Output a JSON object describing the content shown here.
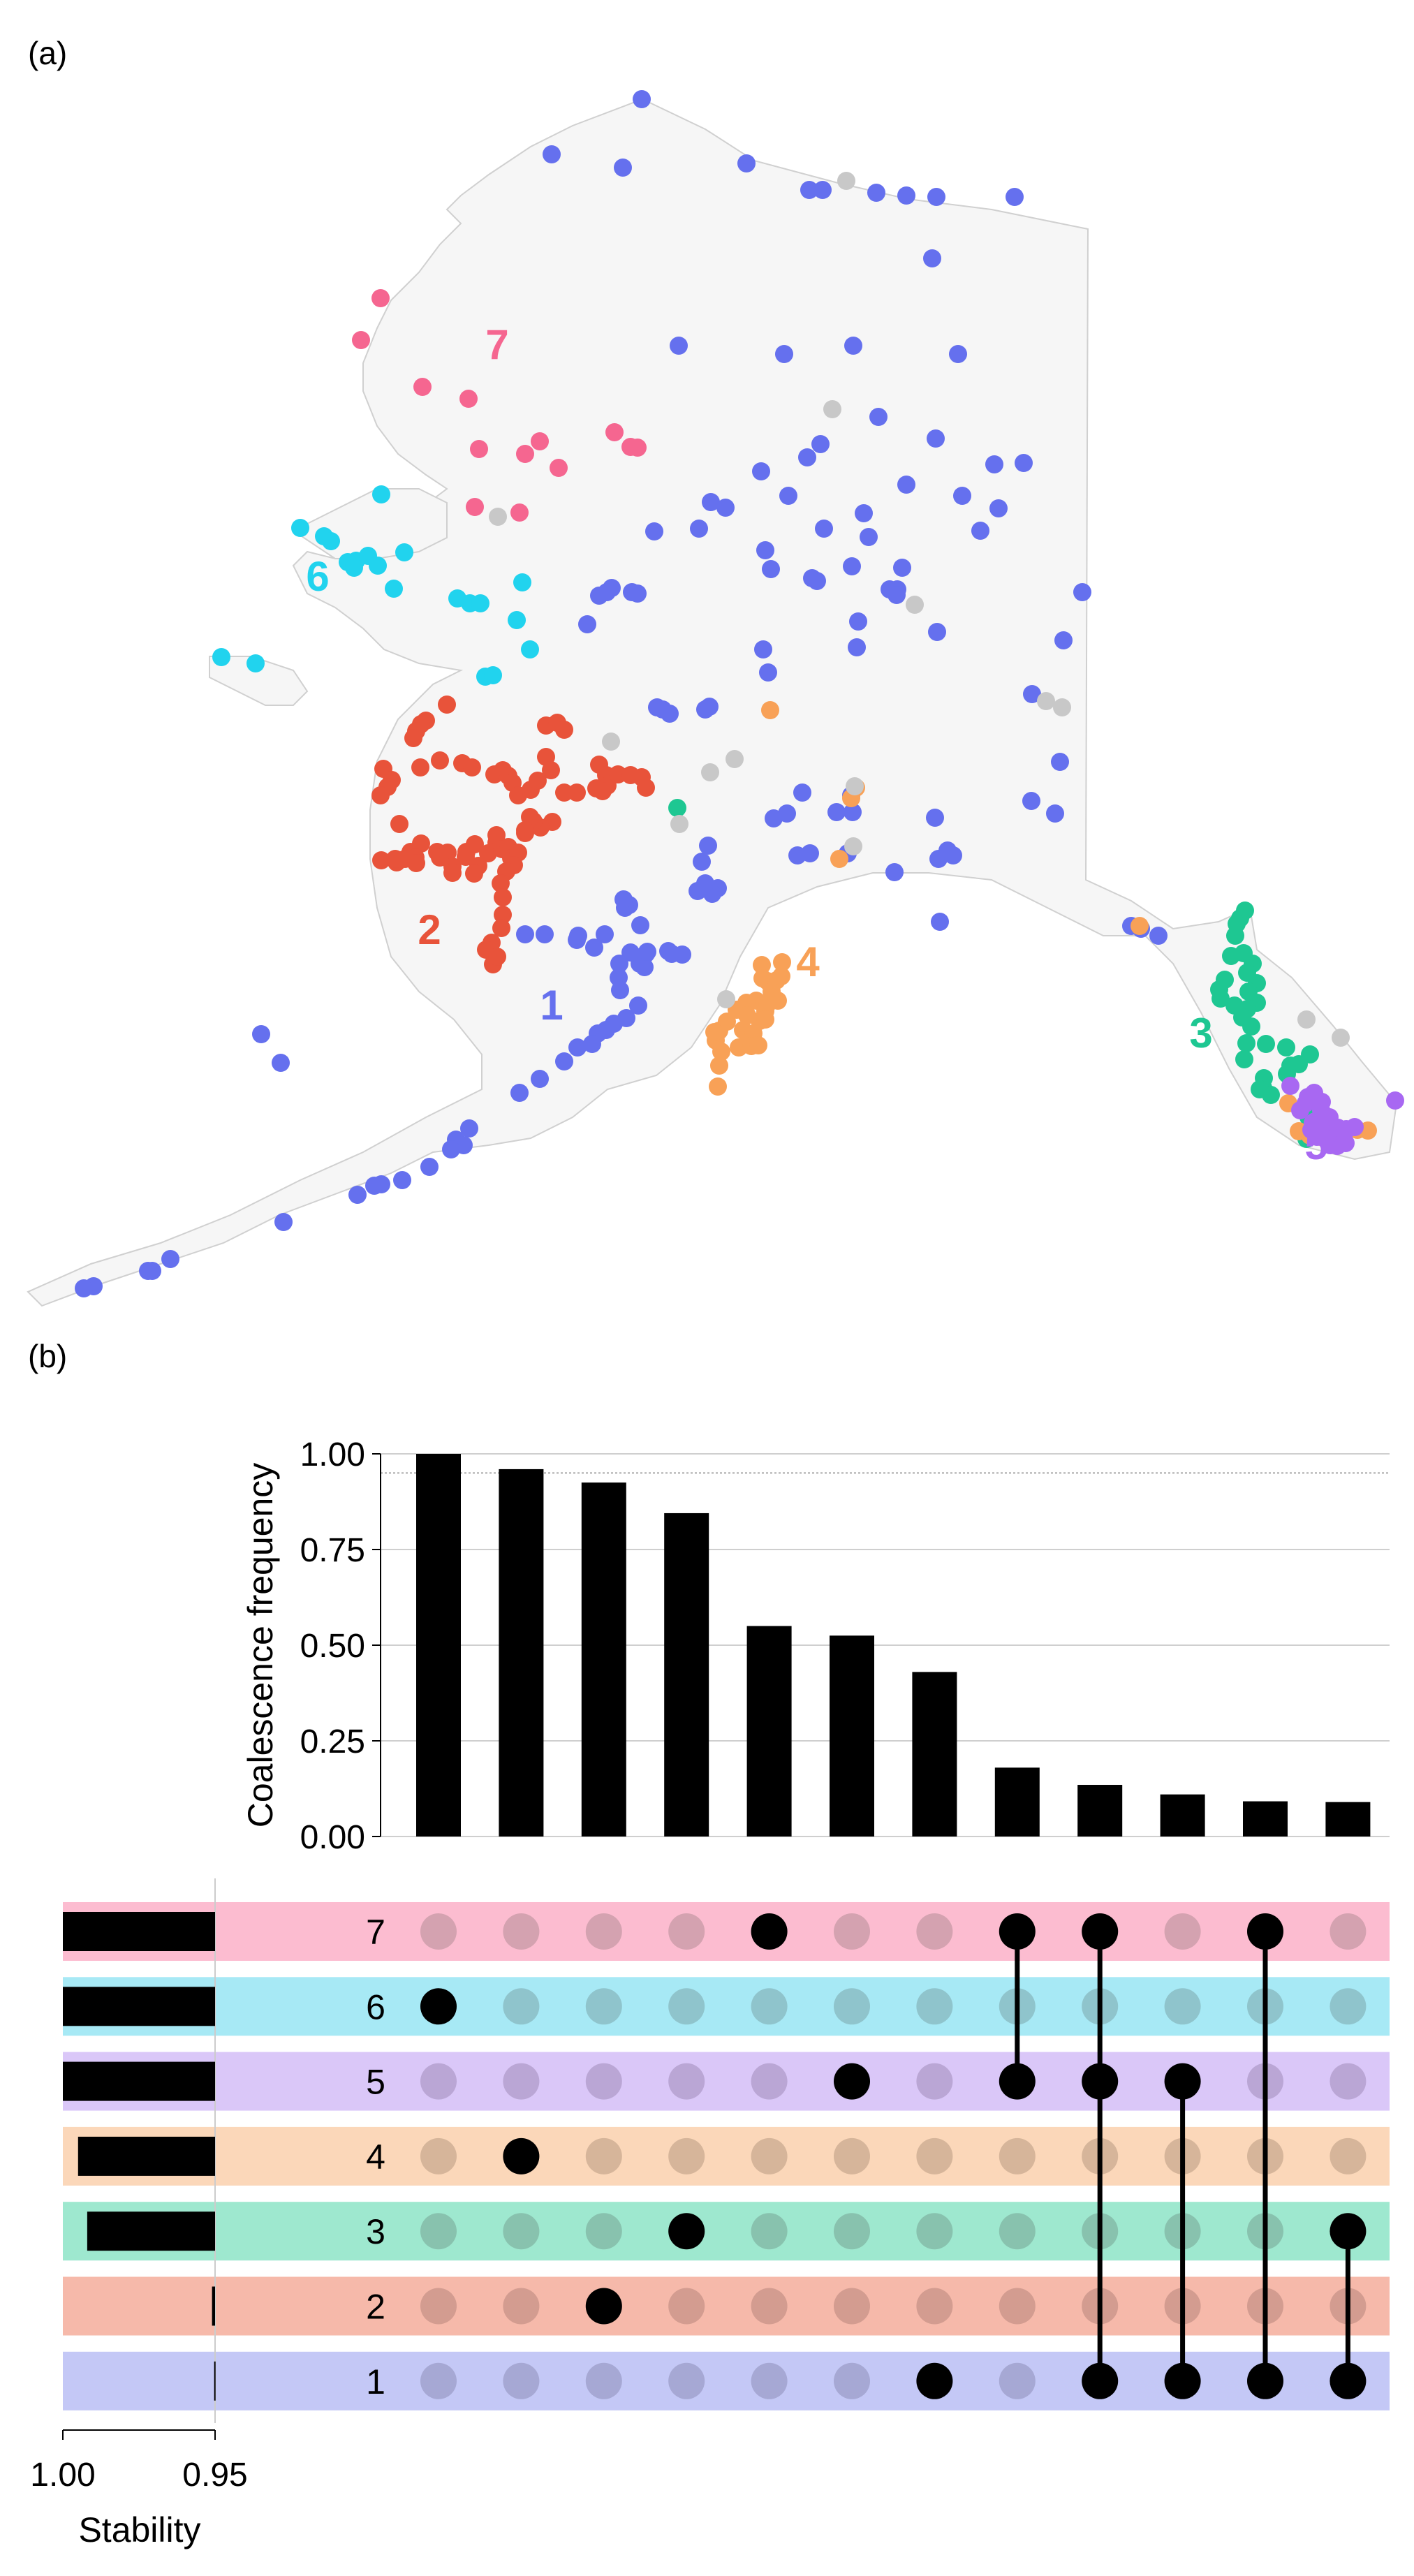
{
  "panel_labels": {
    "a": "(a)",
    "b": "(b)"
  },
  "map": {
    "region_labels": [
      {
        "id": "1",
        "text": "1",
        "color": "#6570ee"
      },
      {
        "id": "2",
        "text": "2",
        "color": "#e8533a"
      },
      {
        "id": "3",
        "text": "3",
        "color": "#1ec792"
      },
      {
        "id": "4",
        "text": "4",
        "color": "#f8a157"
      },
      {
        "id": "5",
        "text": "5",
        "color": "#a868f2"
      },
      {
        "id": "6",
        "text": "6",
        "color": "#21d3ee"
      },
      {
        "id": "7",
        "text": "7",
        "color": "#f56690"
      }
    ],
    "unassigned_color": "#c8c8c8",
    "land_color": "#f6f6f6",
    "coast_color": "#d0d0d0"
  },
  "chart_data": [
    {
      "type": "bar",
      "ylabel": "Coalescence frequency",
      "ylim": [
        0,
        1.0
      ],
      "yticks": [
        "0.00",
        "0.25",
        "0.50",
        "0.75",
        "1.00"
      ],
      "reference_line": 0.95,
      "values": [
        1.0,
        0.96,
        0.925,
        0.845,
        0.55,
        0.525,
        0.43,
        0.18,
        0.135,
        0.11,
        0.092,
        0.09
      ],
      "grid": "horizontal"
    },
    {
      "type": "upset-matrix",
      "rows": [
        {
          "label": "7",
          "band": "#fcbcd0",
          "dot": "#d4a2b0"
        },
        {
          "label": "6",
          "band": "#a7e9f5",
          "dot": "#8fc4cc"
        },
        {
          "label": "5",
          "band": "#dac7f8",
          "dot": "#baa6d5"
        },
        {
          "label": "4",
          "band": "#fbd7b9",
          "dot": "#d6b59a"
        },
        {
          "label": "3",
          "band": "#9ee8cf",
          "dot": "#88c2ae"
        },
        {
          "label": "2",
          "band": "#f6b9aa",
          "dot": "#d39c90"
        },
        {
          "label": "1",
          "band": "#c4c8f6",
          "dot": "#a6a8d4"
        }
      ],
      "sets_per_column": [
        [
          "6"
        ],
        [
          "4"
        ],
        [
          "2"
        ],
        [
          "3"
        ],
        [
          "7"
        ],
        [
          "5"
        ],
        [
          "1"
        ],
        [
          "7",
          "5"
        ],
        [
          "7",
          "5",
          "1"
        ],
        [
          "5",
          "1"
        ],
        [
          "7",
          "1"
        ],
        [
          "3",
          "1"
        ]
      ]
    },
    {
      "type": "bar",
      "orientation": "horizontal",
      "xlabel": "Stability",
      "xticks": [
        "1.00",
        "0.95"
      ],
      "xlim": [
        1.0,
        0.95
      ],
      "categories": [
        "7",
        "6",
        "5",
        "4",
        "3",
        "2",
        "1"
      ],
      "values": [
        1.0,
        1.0,
        1.0,
        0.995,
        0.992,
        0.951,
        0.9503
      ]
    }
  ]
}
